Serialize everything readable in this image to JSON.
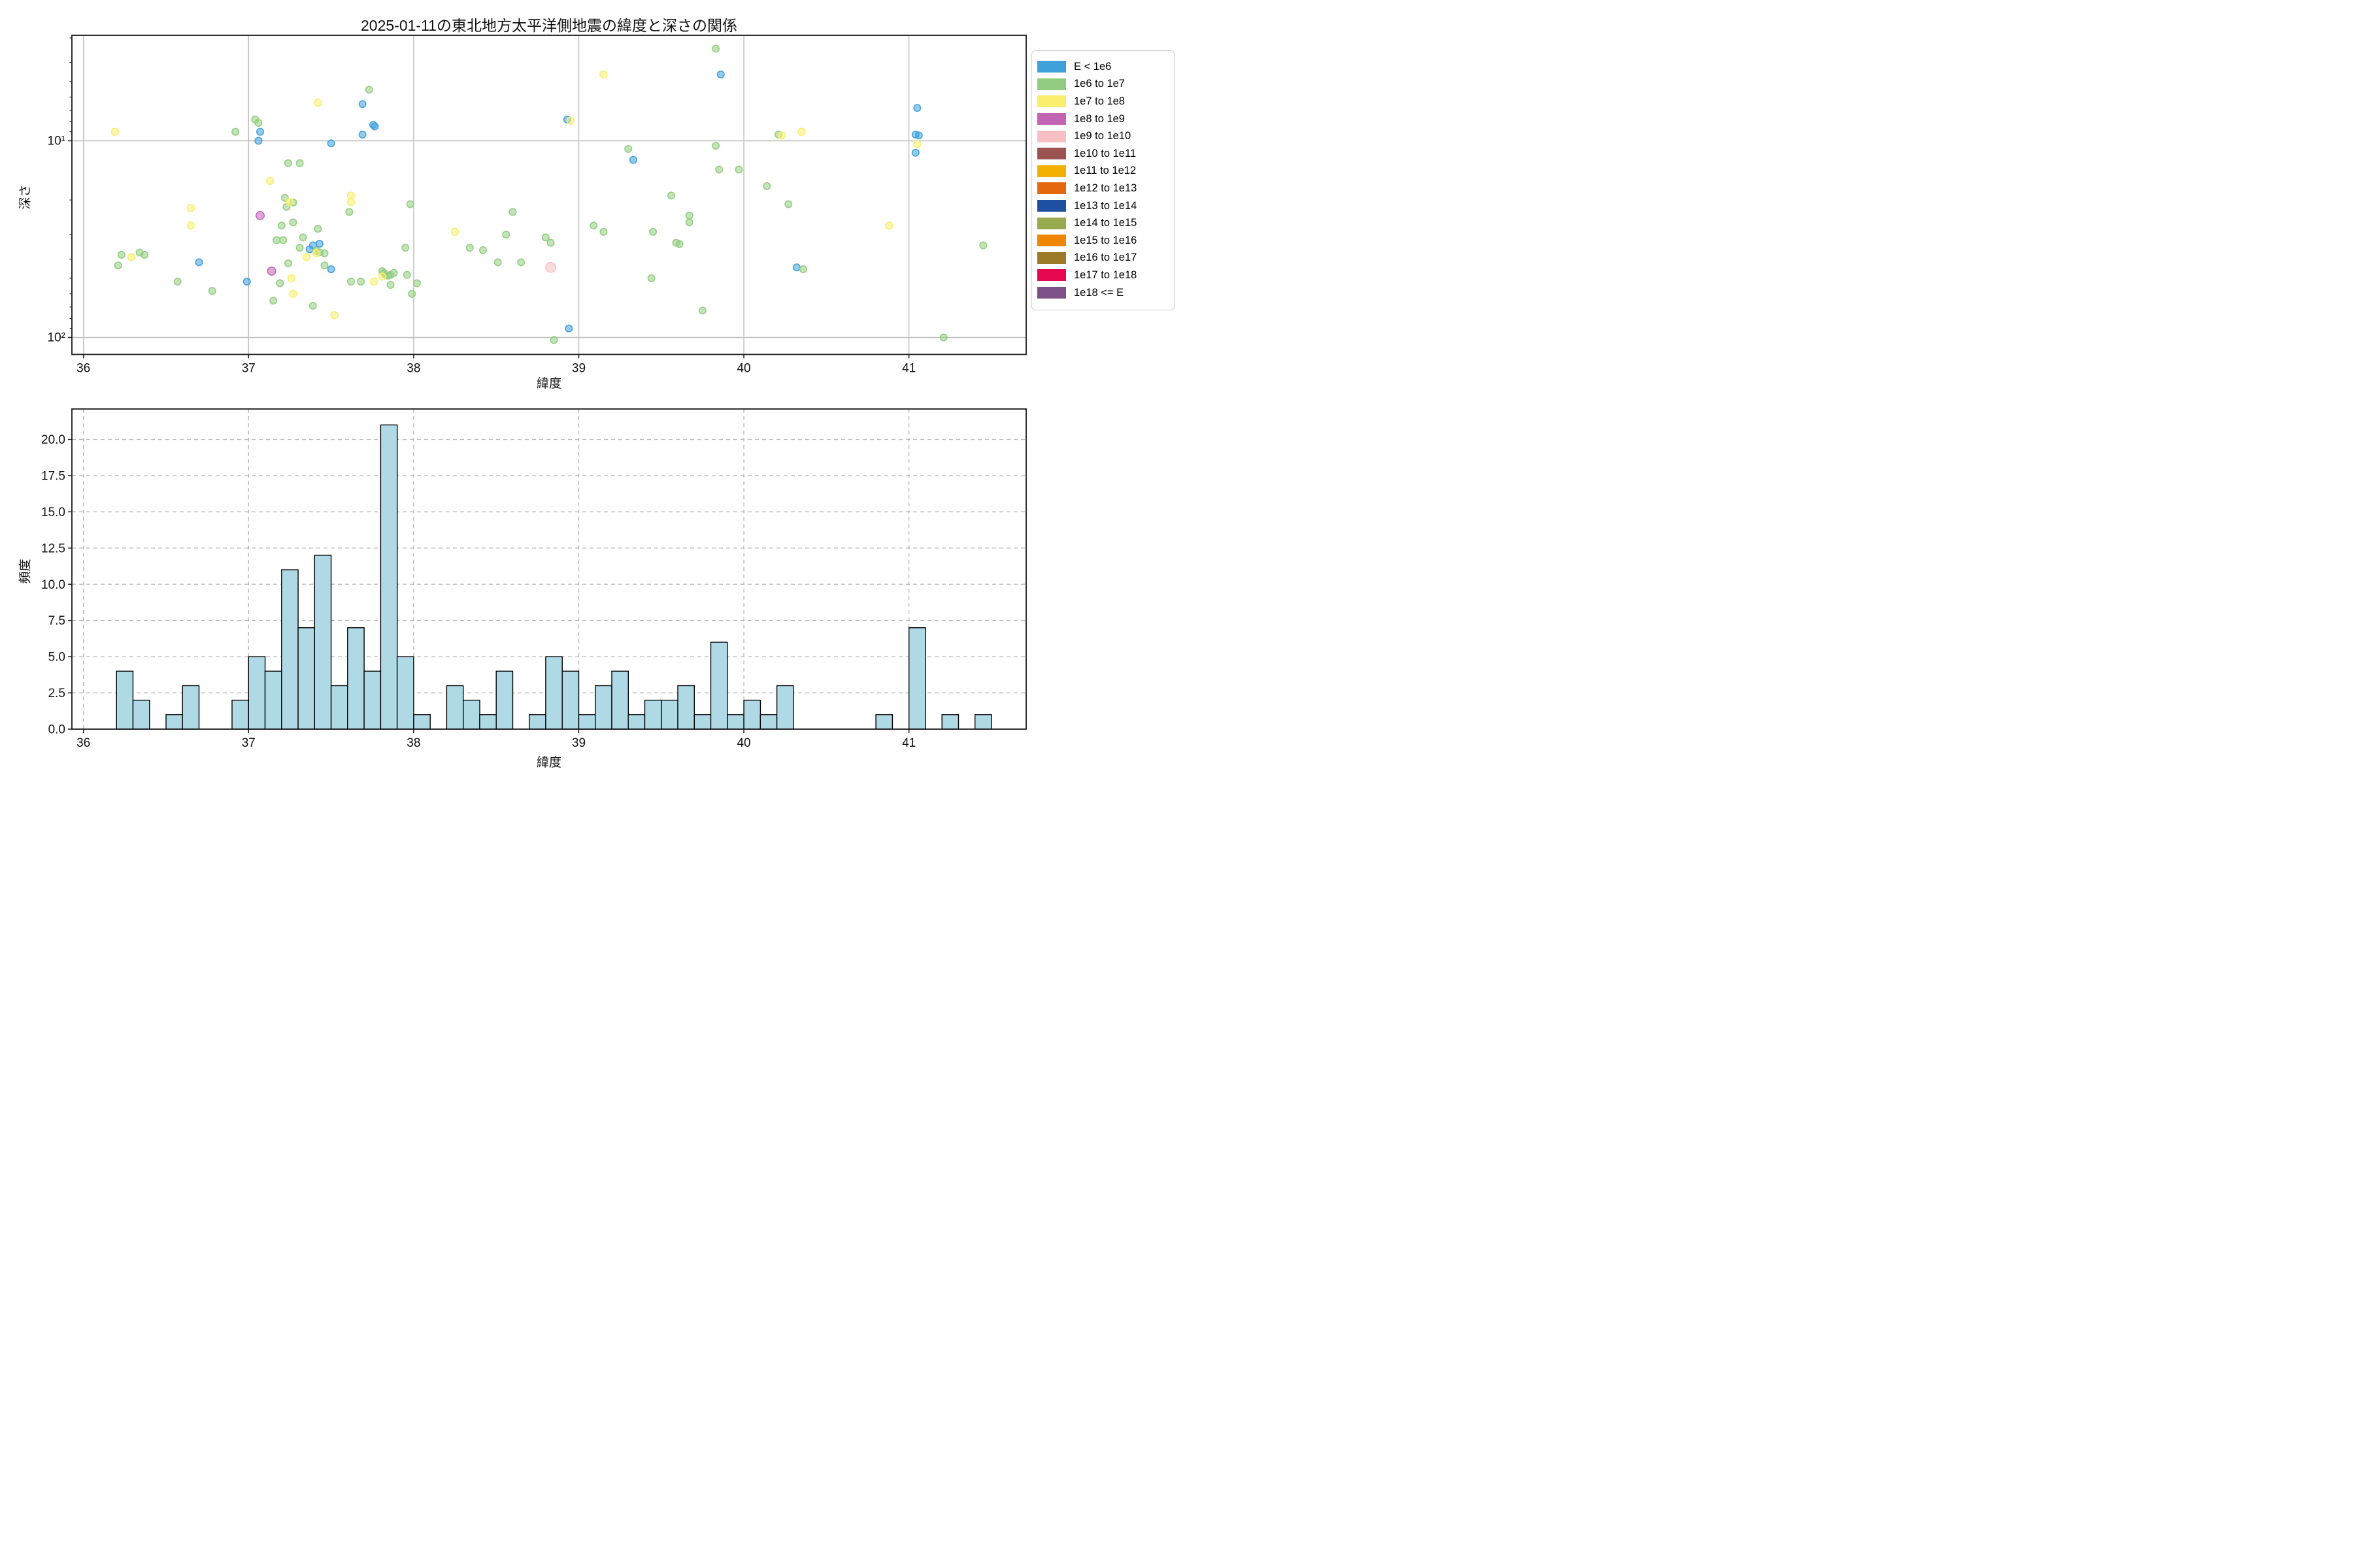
{
  "title": "2025-01-11の東北地方太平洋側地震の緯度と深さの関係",
  "scatter_axis": {
    "xlabel": "緯度",
    "ylabel": "深さ",
    "xticks": [
      36,
      37,
      38,
      39,
      40,
      41
    ],
    "ytick_labels": [
      "10¹",
      "10²"
    ],
    "ytick_values": [
      10,
      100
    ],
    "yminor_ticks": [
      3,
      4,
      5,
      6,
      7,
      8,
      9,
      20,
      30,
      40,
      50,
      60,
      70,
      80,
      90
    ],
    "xlim": [
      35.93,
      41.71
    ],
    "ylim_depth_top": 2.9,
    "ylim_depth_bottom": 122
  },
  "hist_axis": {
    "xlabel": "緯度",
    "ylabel": "頻度",
    "xticks": [
      36,
      37,
      38,
      39,
      40,
      41
    ],
    "yticks": [
      "0.0",
      "2.5",
      "5.0",
      "7.5",
      "10.0",
      "12.5",
      "15.0",
      "17.5",
      "20.0"
    ],
    "ytick_values": [
      0,
      2.5,
      5,
      7.5,
      10,
      12.5,
      15,
      17.5,
      20
    ],
    "xlim": [
      35.93,
      41.71
    ],
    "ylim": [
      0,
      22.1
    ],
    "grid": "dashed"
  },
  "legend": {
    "items": [
      {
        "label": "E < 1e6",
        "color": "#3fa0da"
      },
      {
        "label": "1e6 to 1e7",
        "color": "#92cc80"
      },
      {
        "label": "1e7 to 1e8",
        "color": "#f9ee6e"
      },
      {
        "label": "1e8 to 1e9",
        "color": "#c263b4"
      },
      {
        "label": "1e9 to 1e10",
        "color": "#f5bfc3"
      },
      {
        "label": "1e10 to 1e11",
        "color": "#9b5351"
      },
      {
        "label": "1e11 to 1e12",
        "color": "#f3b000"
      },
      {
        "label": "1e12 to 1e13",
        "color": "#e4690e"
      },
      {
        "label": "1e13 to 1e14",
        "color": "#1e4fa0"
      },
      {
        "label": "1e14 to 1e15",
        "color": "#97aa4e"
      },
      {
        "label": "1e15 to 1e16",
        "color": "#f08504"
      },
      {
        "label": "1e16 to 1e17",
        "color": "#9c7a28"
      },
      {
        "label": "1e17 to 1e18",
        "color": "#e50850"
      },
      {
        "label": "1e18 <= E",
        "color": "#7d5187"
      }
    ]
  },
  "chart_data": [
    {
      "type": "scatter",
      "title": "2025-01-11の東北地方太平洋側地震の緯度と深さの関係",
      "xlabel": "緯度",
      "ylabel": "深さ",
      "x_is": "latitude_deg",
      "y_is": "depth_km_log_inverted",
      "xlim": [
        35.93,
        41.71
      ],
      "series": [
        {
          "name": "E < 1e6",
          "color": "#3fa0da",
          "r": 5.2,
          "points": [
            [
              36.7,
              41.5
            ],
            [
              36.99,
              52
            ],
            [
              37.06,
              10.0
            ],
            [
              37.07,
              9.0
            ],
            [
              37.37,
              35.6
            ],
            [
              37.39,
              34.0
            ],
            [
              37.43,
              33.4
            ],
            [
              37.5,
              10.3
            ],
            [
              37.5,
              45
            ],
            [
              37.69,
              6.5
            ],
            [
              37.69,
              9.3
            ],
            [
              37.755,
              8.3
            ],
            [
              37.765,
              8.45
            ],
            [
              38.93,
              7.8
            ],
            [
              38.94,
              90
            ],
            [
              39.33,
              12.5
            ],
            [
              39.86,
              4.6
            ],
            [
              40.32,
              44
            ],
            [
              41.04,
              9.3
            ],
            [
              41.06,
              9.4
            ],
            [
              41.05,
              6.8
            ],
            [
              41.04,
              11.5
            ]
          ]
        },
        {
          "name": "1e6 to 1e7",
          "color": "#92cc80",
          "r": 5.2,
          "points": [
            [
              36.21,
              43
            ],
            [
              36.23,
              38
            ],
            [
              36.34,
              37
            ],
            [
              36.37,
              38
            ],
            [
              36.57,
              52
            ],
            [
              36.78,
              58
            ],
            [
              36.92,
              9.0
            ],
            [
              37.04,
              7.8
            ],
            [
              37.06,
              8.1
            ],
            [
              37.15,
              65
            ],
            [
              37.17,
              32
            ],
            [
              37.19,
              53
            ],
            [
              37.2,
              27
            ],
            [
              37.21,
              32
            ],
            [
              37.22,
              19.5
            ],
            [
              37.23,
              21.7
            ],
            [
              37.24,
              13.0
            ],
            [
              37.24,
              42
            ],
            [
              37.27,
              20.6
            ],
            [
              37.27,
              26
            ],
            [
              37.31,
              13.0
            ],
            [
              37.31,
              35
            ],
            [
              37.33,
              31
            ],
            [
              37.39,
              69
            ],
            [
              37.41,
              36.2
            ],
            [
              37.42,
              28
            ],
            [
              37.43,
              36.9
            ],
            [
              37.46,
              37.3
            ],
            [
              37.46,
              43
            ],
            [
              37.61,
              23
            ],
            [
              37.62,
              52
            ],
            [
              37.68,
              52
            ],
            [
              37.73,
              5.5
            ],
            [
              37.81,
              46
            ],
            [
              37.82,
              47
            ],
            [
              37.83,
              48
            ],
            [
              37.845,
              48.5
            ],
            [
              37.86,
              48
            ],
            [
              37.86,
              54
            ],
            [
              37.88,
              47
            ],
            [
              37.95,
              35
            ],
            [
              37.96,
              48
            ],
            [
              37.98,
              21
            ],
            [
              37.99,
              60
            ],
            [
              38.02,
              53
            ],
            [
              38.34,
              35
            ],
            [
              38.42,
              36
            ],
            [
              38.51,
              41.5
            ],
            [
              38.56,
              30
            ],
            [
              38.6,
              23
            ],
            [
              38.65,
              41.5
            ],
            [
              38.8,
              31
            ],
            [
              38.83,
              33
            ],
            [
              38.85,
              103
            ],
            [
              39.09,
              27
            ],
            [
              39.15,
              29
            ],
            [
              39.3,
              11
            ],
            [
              39.44,
              50
            ],
            [
              39.45,
              29
            ],
            [
              39.56,
              19
            ],
            [
              39.59,
              33
            ],
            [
              39.61,
              33.5
            ],
            [
              39.67,
              24
            ],
            [
              39.67,
              26
            ],
            [
              39.75,
              73
            ],
            [
              39.83,
              3.4
            ],
            [
              39.83,
              10.6
            ],
            [
              39.85,
              14
            ],
            [
              39.97,
              14
            ],
            [
              40.14,
              17
            ],
            [
              40.21,
              9.3
            ],
            [
              40.27,
              21
            ],
            [
              40.36,
              45
            ],
            [
              41.21,
              100
            ],
            [
              41.45,
              34
            ]
          ]
        },
        {
          "name": "1e7 to 1e8",
          "color": "#f9ee6e",
          "r": 5.4,
          "points": [
            [
              36.19,
              9.0
            ],
            [
              36.29,
              39
            ],
            [
              36.65,
              22
            ],
            [
              36.65,
              27
            ],
            [
              37.13,
              16
            ],
            [
              37.25,
              20.5
            ],
            [
              37.26,
              50
            ],
            [
              37.27,
              60
            ],
            [
              37.35,
              39
            ],
            [
              37.41,
              37.3
            ],
            [
              37.42,
              6.4
            ],
            [
              37.52,
              77
            ],
            [
              37.62,
              19
            ],
            [
              37.62,
              20.5
            ],
            [
              37.76,
              52
            ],
            [
              37.81,
              49
            ],
            [
              38.25,
              29
            ],
            [
              38.95,
              7.9
            ],
            [
              39.15,
              4.6
            ],
            [
              40.23,
              9.4
            ],
            [
              40.35,
              9.0
            ],
            [
              40.88,
              27
            ],
            [
              41.05,
              10.4
            ]
          ]
        },
        {
          "name": "1e8 to 1e9",
          "color": "#c263b4",
          "r": 6.2,
          "points": [
            [
              37.07,
              24
            ],
            [
              37.14,
              46
            ]
          ]
        },
        {
          "name": "1e9 to 1e10",
          "color": "#f5bfc3",
          "r": 7.5,
          "points": [
            [
              38.83,
              44
            ]
          ]
        }
      ]
    },
    {
      "type": "bar",
      "xlabel": "緯度",
      "ylabel": "頻度",
      "bar_color": "#b0d9e6",
      "bar_edge": "#000000",
      "bin_width": 0.1,
      "bins": [
        [
          36.2,
          4
        ],
        [
          36.3,
          2
        ],
        [
          36.5,
          1
        ],
        [
          36.6,
          3
        ],
        [
          36.9,
          2
        ],
        [
          37.0,
          5
        ],
        [
          37.1,
          4
        ],
        [
          37.2,
          11
        ],
        [
          37.3,
          7
        ],
        [
          37.4,
          12
        ],
        [
          37.5,
          3
        ],
        [
          37.6,
          7
        ],
        [
          37.7,
          4
        ],
        [
          37.8,
          21
        ],
        [
          37.9,
          5
        ],
        [
          38.0,
          1
        ],
        [
          38.2,
          3
        ],
        [
          38.3,
          2
        ],
        [
          38.4,
          1
        ],
        [
          38.5,
          4
        ],
        [
          38.7,
          1
        ],
        [
          38.8,
          5
        ],
        [
          38.9,
          4
        ],
        [
          39.0,
          1
        ],
        [
          39.1,
          3
        ],
        [
          39.2,
          4
        ],
        [
          39.3,
          1
        ],
        [
          39.4,
          2
        ],
        [
          39.5,
          2
        ],
        [
          39.6,
          3
        ],
        [
          39.7,
          1
        ],
        [
          39.8,
          6
        ],
        [
          39.9,
          1
        ],
        [
          40.0,
          2
        ],
        [
          40.1,
          1
        ],
        [
          40.2,
          3
        ],
        [
          40.8,
          1
        ],
        [
          41.0,
          7
        ],
        [
          41.2,
          1
        ],
        [
          41.4,
          1
        ]
      ]
    }
  ],
  "style": {
    "grid_color_solid": "#bdbdbd",
    "grid_color_dashed": "#b5b5b5",
    "spine_color": "#1a1a1a",
    "background": "#ffffff"
  }
}
